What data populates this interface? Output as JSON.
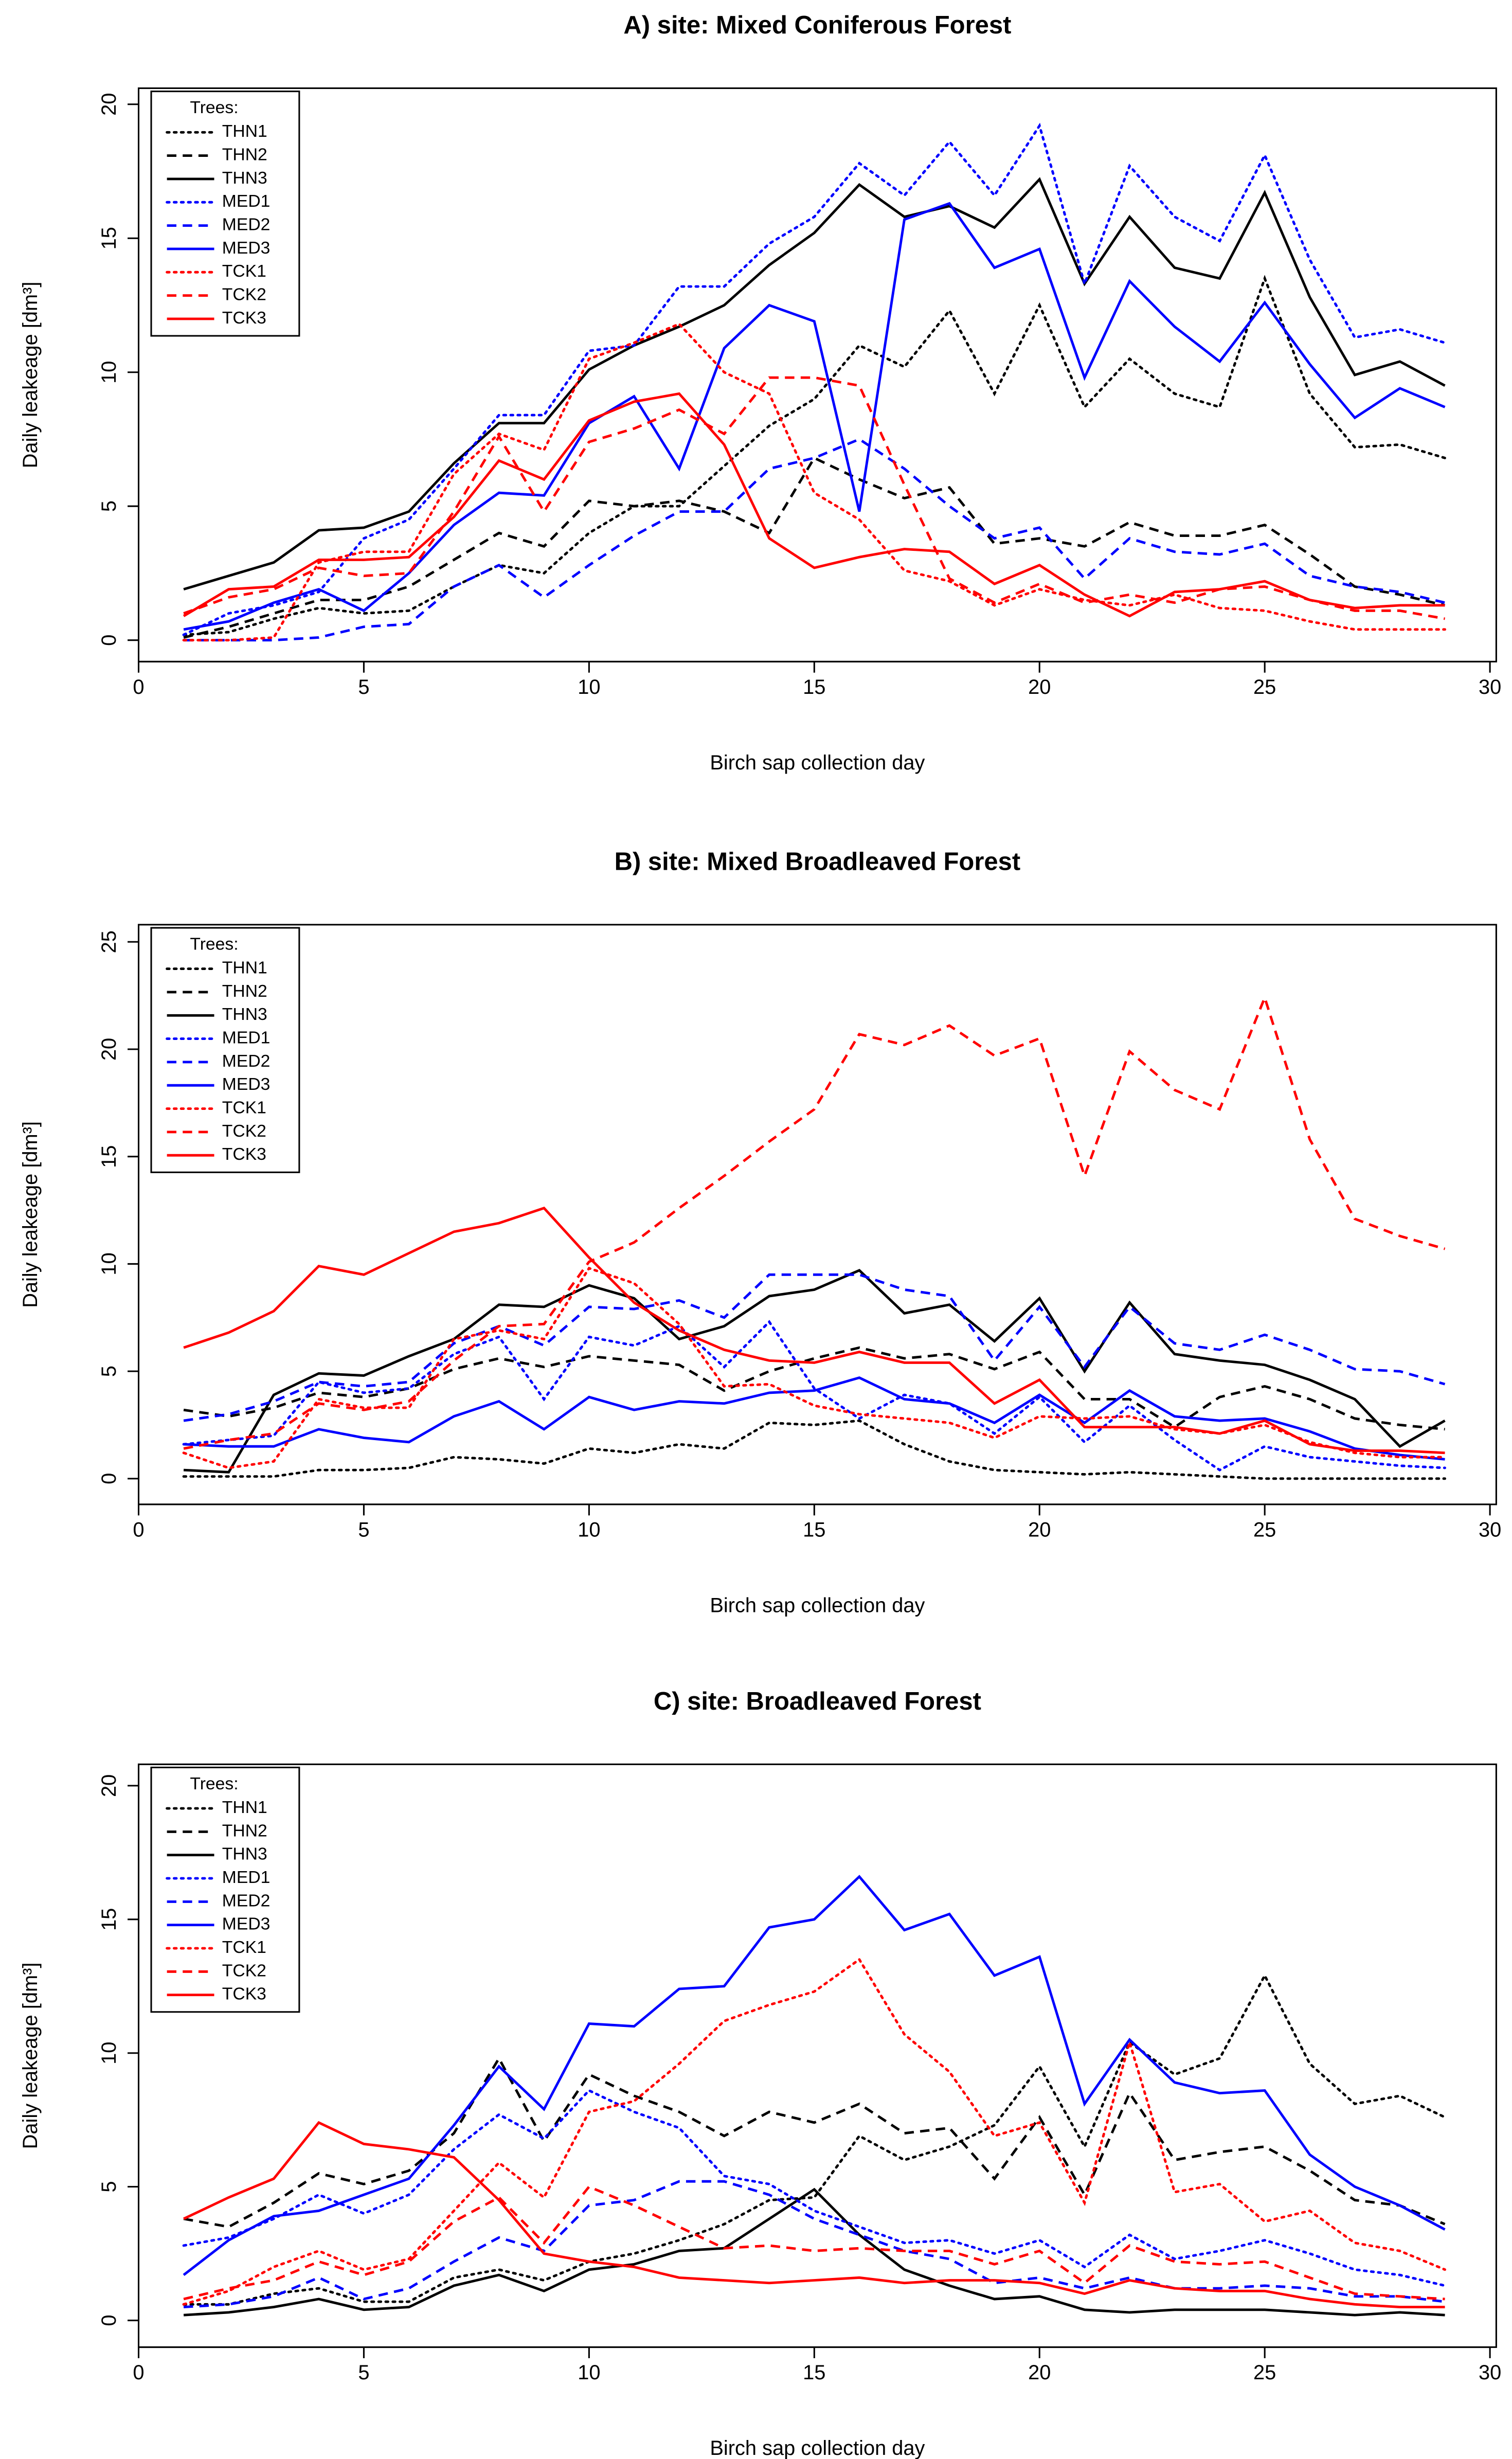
{
  "chart_data": [
    {
      "type": "line",
      "title": "A) site: Mixed Coniferous Forest",
      "xlabel": "Birch sap collection day",
      "ylabel": "Daily leakeage [dm³]",
      "legend_title": "Trees:",
      "legend": "topleft",
      "x": [
        1,
        2,
        3,
        4,
        5,
        6,
        7,
        8,
        9,
        10,
        11,
        12,
        13,
        14,
        15,
        16,
        17,
        18,
        19,
        20,
        21,
        22,
        23,
        24,
        25,
        26,
        27,
        28,
        29
      ],
      "xlim": [
        0,
        30
      ],
      "xticks": [
        0,
        5,
        10,
        15,
        20,
        25,
        30
      ],
      "ylim": [
        -0.8,
        20.6
      ],
      "yticks": [
        0,
        5,
        10,
        15,
        20
      ],
      "series": [
        {
          "name": "THN1",
          "color": "#000000",
          "dash": "dotted",
          "values": [
            0.2,
            0.3,
            0.8,
            1.2,
            1.0,
            1.1,
            2.0,
            2.8,
            2.5,
            4.0,
            5.0,
            5.0,
            6.5,
            8.0,
            9.0,
            11.0,
            10.2,
            12.3,
            9.2,
            12.5,
            8.7,
            10.5,
            9.2,
            8.7,
            13.5,
            9.2,
            7.2,
            7.3,
            6.8
          ]
        },
        {
          "name": "THN2",
          "color": "#000000",
          "dash": "dashed",
          "values": [
            0.1,
            0.5,
            1.0,
            1.5,
            1.5,
            2.0,
            3.0,
            4.0,
            3.5,
            5.2,
            5.0,
            5.2,
            4.8,
            4.0,
            6.8,
            6.0,
            5.3,
            5.7,
            3.6,
            3.8,
            3.5,
            4.4,
            3.9,
            3.9,
            4.3,
            3.2,
            2.0,
            1.7,
            1.3
          ]
        },
        {
          "name": "THN3",
          "color": "#000000",
          "dash": "solid",
          "values": [
            1.9,
            2.4,
            2.9,
            4.1,
            4.2,
            4.8,
            6.6,
            8.1,
            8.1,
            10.1,
            11.0,
            11.7,
            12.5,
            14.0,
            15.2,
            17.0,
            15.8,
            16.2,
            15.4,
            17.2,
            13.3,
            15.8,
            13.9,
            13.5,
            16.7,
            12.8,
            9.9,
            10.4,
            9.5
          ]
        },
        {
          "name": "MED1",
          "color": "#0000ff",
          "dash": "dotted",
          "values": [
            0.2,
            1.0,
            1.3,
            1.8,
            3.8,
            4.5,
            6.4,
            8.4,
            8.4,
            10.8,
            11.0,
            13.2,
            13.2,
            14.8,
            15.8,
            17.8,
            16.6,
            18.6,
            16.6,
            19.2,
            13.3,
            17.7,
            15.8,
            14.9,
            18.1,
            14.2,
            11.3,
            11.6,
            11.1
          ]
        },
        {
          "name": "MED2",
          "color": "#0000ff",
          "dash": "dashed",
          "values": [
            0.0,
            0.0,
            0.0,
            0.1,
            0.5,
            0.6,
            2.0,
            2.8,
            1.6,
            2.8,
            3.9,
            4.8,
            4.8,
            6.4,
            6.8,
            7.5,
            6.4,
            5.0,
            3.8,
            4.2,
            2.3,
            3.8,
            3.3,
            3.2,
            3.6,
            2.4,
            2.0,
            1.8,
            1.4
          ]
        },
        {
          "name": "MED3",
          "color": "#0000ff",
          "dash": "solid",
          "values": [
            0.4,
            0.7,
            1.4,
            1.9,
            1.1,
            2.5,
            4.3,
            5.5,
            5.4,
            8.1,
            9.1,
            6.4,
            10.9,
            12.5,
            11.9,
            4.8,
            15.7,
            16.3,
            13.9,
            14.6,
            9.8,
            13.4,
            11.7,
            10.4,
            12.6,
            10.3,
            8.3,
            9.4,
            8.7
          ]
        },
        {
          "name": "TCK1",
          "color": "#ff0000",
          "dash": "dotted",
          "values": [
            0.0,
            0.0,
            0.1,
            2.9,
            3.3,
            3.3,
            6.2,
            7.7,
            7.1,
            10.5,
            11.1,
            11.8,
            10.0,
            9.2,
            5.5,
            4.5,
            2.6,
            2.2,
            1.3,
            1.9,
            1.5,
            1.3,
            1.7,
            1.2,
            1.1,
            0.7,
            0.4,
            0.4,
            0.4
          ]
        },
        {
          "name": "TCK2",
          "color": "#ff0000",
          "dash": "dashed",
          "values": [
            1.0,
            1.6,
            1.9,
            2.7,
            2.4,
            2.5,
            4.8,
            7.6,
            4.8,
            7.4,
            7.9,
            8.6,
            7.7,
            9.8,
            9.8,
            9.5,
            5.8,
            2.3,
            1.4,
            2.1,
            1.4,
            1.7,
            1.4,
            1.9,
            2.0,
            1.5,
            1.1,
            1.1,
            0.8
          ]
        },
        {
          "name": "TCK3",
          "color": "#ff0000",
          "dash": "solid",
          "values": [
            0.9,
            1.9,
            2.0,
            3.0,
            3.0,
            3.1,
            4.6,
            6.7,
            6.0,
            8.2,
            8.9,
            9.2,
            7.3,
            3.8,
            2.7,
            3.1,
            3.4,
            3.3,
            2.1,
            2.8,
            1.7,
            0.9,
            1.8,
            1.9,
            2.2,
            1.5,
            1.2,
            1.3,
            1.3
          ]
        }
      ]
    },
    {
      "type": "line",
      "title": "B) site: Mixed Broadleaved Forest",
      "xlabel": "Birch sap collection day",
      "ylabel": "Daily leakeage [dm³]",
      "legend_title": "Trees:",
      "legend": "topleft",
      "x": [
        1,
        2,
        3,
        4,
        5,
        6,
        7,
        8,
        9,
        10,
        11,
        12,
        13,
        14,
        15,
        16,
        17,
        18,
        19,
        20,
        21,
        22,
        23,
        24,
        25,
        26,
        27,
        28,
        29
      ],
      "xlim": [
        0,
        30
      ],
      "xticks": [
        0,
        5,
        10,
        15,
        20,
        25,
        30
      ],
      "ylim": [
        -1.2,
        25.8
      ],
      "yticks": [
        0,
        5,
        10,
        15,
        20,
        25
      ],
      "series": [
        {
          "name": "THN1",
          "color": "#000000",
          "dash": "dotted",
          "values": [
            0.1,
            0.1,
            0.1,
            0.4,
            0.4,
            0.5,
            1.0,
            0.9,
            0.7,
            1.4,
            1.2,
            1.6,
            1.4,
            2.6,
            2.5,
            2.7,
            1.6,
            0.8,
            0.4,
            0.3,
            0.2,
            0.3,
            0.2,
            0.1,
            0.0,
            0.0,
            0.0,
            0.0,
            0.0
          ]
        },
        {
          "name": "THN2",
          "color": "#000000",
          "dash": "dashed",
          "values": [
            3.2,
            2.9,
            3.3,
            4.0,
            3.8,
            4.2,
            5.1,
            5.6,
            5.2,
            5.7,
            5.5,
            5.3,
            4.1,
            5.0,
            5.6,
            6.1,
            5.6,
            5.8,
            5.1,
            5.9,
            3.7,
            3.7,
            2.4,
            3.8,
            4.3,
            3.7,
            2.8,
            2.5,
            2.3
          ]
        },
        {
          "name": "THN3",
          "color": "#000000",
          "dash": "solid",
          "values": [
            0.4,
            0.3,
            3.9,
            4.9,
            4.8,
            5.7,
            6.5,
            8.1,
            8.0,
            9.0,
            8.4,
            6.5,
            7.1,
            8.5,
            8.8,
            9.7,
            7.7,
            8.1,
            6.4,
            8.4,
            5.0,
            8.2,
            5.8,
            5.5,
            5.3,
            4.6,
            3.7,
            1.5,
            2.7
          ]
        },
        {
          "name": "MED1",
          "color": "#0000ff",
          "dash": "dotted",
          "values": [
            1.6,
            1.8,
            2.0,
            4.5,
            4.0,
            4.2,
            5.8,
            6.6,
            3.7,
            6.6,
            6.2,
            7.1,
            5.2,
            7.3,
            4.2,
            2.8,
            3.9,
            3.5,
            2.1,
            3.8,
            1.7,
            3.4,
            1.8,
            0.4,
            1.5,
            1.0,
            0.8,
            0.6,
            0.5
          ]
        },
        {
          "name": "MED2",
          "color": "#0000ff",
          "dash": "dashed",
          "values": [
            2.7,
            3.0,
            3.6,
            4.5,
            4.3,
            4.5,
            6.3,
            7.1,
            6.2,
            8.0,
            7.9,
            8.3,
            7.5,
            9.5,
            9.5,
            9.5,
            8.8,
            8.5,
            5.5,
            8.0,
            5.2,
            8.0,
            6.3,
            6.0,
            6.7,
            6.0,
            5.1,
            5.0,
            4.4
          ]
        },
        {
          "name": "MED3",
          "color": "#0000ff",
          "dash": "solid",
          "values": [
            1.6,
            1.5,
            1.5,
            2.3,
            1.9,
            1.7,
            2.9,
            3.6,
            2.3,
            3.8,
            3.2,
            3.6,
            3.5,
            4.0,
            4.1,
            4.7,
            3.7,
            3.5,
            2.6,
            3.9,
            2.6,
            4.1,
            2.9,
            2.7,
            2.8,
            2.2,
            1.4,
            1.1,
            0.9
          ]
        },
        {
          "name": "TCK1",
          "color": "#ff0000",
          "dash": "dotted",
          "values": [
            1.2,
            0.5,
            0.8,
            3.7,
            3.3,
            3.3,
            6.5,
            6.9,
            6.5,
            9.8,
            9.1,
            7.2,
            4.3,
            4.4,
            3.4,
            3.0,
            2.8,
            2.6,
            1.9,
            2.9,
            2.8,
            2.9,
            2.3,
            2.1,
            2.5,
            1.7,
            1.2,
            1.0,
            1.0
          ]
        },
        {
          "name": "TCK2",
          "color": "#ff0000",
          "dash": "dashed",
          "values": [
            1.4,
            1.8,
            2.1,
            3.5,
            3.2,
            3.6,
            5.5,
            7.1,
            7.2,
            10.1,
            11.0,
            12.6,
            14.1,
            15.7,
            17.2,
            20.7,
            20.2,
            21.1,
            19.7,
            20.5,
            14.1,
            19.9,
            18.1,
            17.2,
            22.4,
            15.8,
            12.1,
            11.3,
            10.7
          ]
        },
        {
          "name": "TCK3",
          "color": "#ff0000",
          "dash": "solid",
          "values": [
            6.1,
            6.8,
            7.8,
            9.9,
            9.5,
            10.5,
            11.5,
            11.9,
            12.6,
            10.3,
            8.2,
            6.9,
            6.0,
            5.5,
            5.4,
            5.9,
            5.4,
            5.4,
            3.5,
            4.6,
            2.4,
            2.4,
            2.4,
            2.1,
            2.7,
            1.6,
            1.3,
            1.3,
            1.2
          ]
        }
      ]
    },
    {
      "type": "line",
      "title": "C) site: Broadleaved Forest",
      "xlabel": "Birch sap collection day",
      "ylabel": "Daily leakeage [dm³]",
      "legend_title": "Trees:",
      "legend": "topleft",
      "x": [
        1,
        2,
        3,
        4,
        5,
        6,
        7,
        8,
        9,
        10,
        11,
        12,
        13,
        14,
        15,
        16,
        17,
        18,
        19,
        20,
        21,
        22,
        23,
        24,
        25,
        26,
        27,
        28,
        29
      ],
      "xlim": [
        0,
        30
      ],
      "xticks": [
        0,
        5,
        10,
        15,
        20,
        25,
        30
      ],
      "ylim": [
        -1.0,
        20.8
      ],
      "yticks": [
        0,
        5,
        10,
        15,
        20
      ],
      "series": [
        {
          "name": "THN1",
          "color": "#000000",
          "dash": "dotted",
          "values": [
            0.6,
            0.6,
            1.0,
            1.2,
            0.7,
            0.7,
            1.6,
            1.9,
            1.5,
            2.2,
            2.5,
            3.0,
            3.6,
            4.5,
            4.6,
            6.9,
            6.0,
            6.5,
            7.3,
            9.5,
            6.5,
            10.4,
            9.2,
            9.8,
            12.9,
            9.6,
            8.1,
            8.4,
            7.6
          ]
        },
        {
          "name": "THN2",
          "color": "#000000",
          "dash": "dashed",
          "values": [
            3.8,
            3.5,
            4.4,
            5.5,
            5.1,
            5.6,
            7.0,
            9.8,
            6.7,
            9.2,
            8.4,
            7.8,
            6.9,
            7.8,
            7.4,
            8.1,
            7.0,
            7.2,
            5.3,
            7.6,
            4.7,
            8.5,
            6.0,
            6.3,
            6.5,
            5.6,
            4.5,
            4.3,
            3.6
          ]
        },
        {
          "name": "THN3",
          "color": "#000000",
          "dash": "solid",
          "values": [
            0.2,
            0.3,
            0.5,
            0.8,
            0.4,
            0.5,
            1.3,
            1.7,
            1.1,
            1.9,
            2.1,
            2.6,
            2.7,
            3.8,
            4.9,
            3.2,
            1.9,
            1.3,
            0.8,
            0.9,
            0.4,
            0.3,
            0.4,
            0.4,
            0.4,
            0.3,
            0.2,
            0.3,
            0.2
          ]
        },
        {
          "name": "MED1",
          "color": "#0000ff",
          "dash": "dotted",
          "values": [
            2.8,
            3.1,
            3.8,
            4.7,
            4.0,
            4.7,
            6.4,
            7.7,
            6.8,
            8.6,
            7.8,
            7.2,
            5.4,
            5.1,
            4.1,
            3.5,
            2.9,
            3.0,
            2.5,
            3.0,
            2.0,
            3.2,
            2.3,
            2.6,
            3.0,
            2.5,
            1.9,
            1.7,
            1.3
          ]
        },
        {
          "name": "MED2",
          "color": "#0000ff",
          "dash": "dashed",
          "values": [
            0.5,
            0.6,
            0.9,
            1.6,
            0.8,
            1.2,
            2.2,
            3.1,
            2.6,
            4.3,
            4.5,
            5.2,
            5.2,
            4.7,
            3.8,
            3.2,
            2.6,
            2.3,
            1.4,
            1.6,
            1.2,
            1.6,
            1.2,
            1.2,
            1.3,
            1.2,
            0.9,
            0.9,
            0.7
          ]
        },
        {
          "name": "MED3",
          "color": "#0000ff",
          "dash": "solid",
          "values": [
            1.7,
            3.0,
            3.9,
            4.1,
            4.7,
            5.3,
            7.3,
            9.5,
            7.9,
            11.1,
            11.0,
            12.4,
            12.5,
            14.7,
            15.0,
            16.6,
            14.6,
            15.2,
            12.9,
            13.6,
            8.1,
            10.5,
            8.9,
            8.5,
            8.6,
            6.2,
            5.0,
            4.3,
            3.4
          ]
        },
        {
          "name": "TCK1",
          "color": "#ff0000",
          "dash": "dotted",
          "values": [
            0.6,
            1.1,
            2.0,
            2.6,
            1.9,
            2.3,
            4.1,
            5.9,
            4.6,
            7.8,
            8.2,
            9.6,
            11.2,
            11.8,
            12.3,
            13.5,
            10.7,
            9.3,
            6.9,
            7.4,
            4.4,
            10.4,
            4.8,
            5.1,
            3.7,
            4.1,
            2.9,
            2.6,
            1.9
          ]
        },
        {
          "name": "TCK2",
          "color": "#ff0000",
          "dash": "dashed",
          "values": [
            0.8,
            1.2,
            1.5,
            2.2,
            1.7,
            2.2,
            3.7,
            4.6,
            2.9,
            5.0,
            4.3,
            3.5,
            2.7,
            2.8,
            2.6,
            2.7,
            2.6,
            2.6,
            2.1,
            2.6,
            1.4,
            2.8,
            2.2,
            2.1,
            2.2,
            1.6,
            1.0,
            0.9,
            0.8
          ]
        },
        {
          "name": "TCK3",
          "color": "#ff0000",
          "dash": "solid",
          "values": [
            3.8,
            4.6,
            5.3,
            7.4,
            6.6,
            6.4,
            6.1,
            4.5,
            2.5,
            2.2,
            2.0,
            1.6,
            1.5,
            1.4,
            1.5,
            1.6,
            1.4,
            1.5,
            1.5,
            1.4,
            1.0,
            1.5,
            1.2,
            1.1,
            1.1,
            0.8,
            0.6,
            0.5,
            0.5
          ]
        }
      ]
    }
  ]
}
